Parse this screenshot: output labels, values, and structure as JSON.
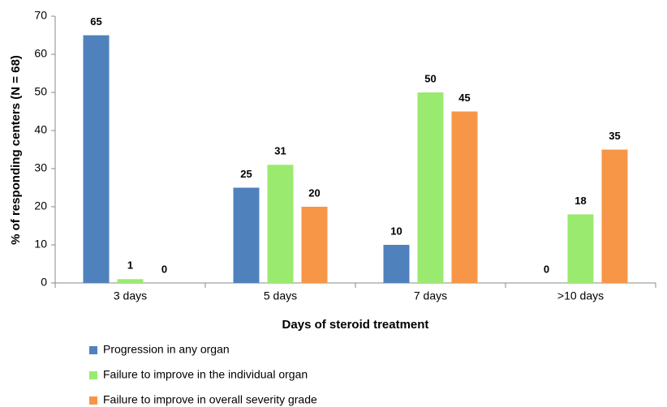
{
  "chart_data": {
    "type": "bar",
    "ylabel": "% of responding centers (N = 68)",
    "xlabel": "Days of steroid treatment",
    "categories": [
      "3 days",
      "5 days",
      "7 days",
      ">10 days"
    ],
    "series": [
      {
        "name": "Progression in any organ",
        "color": "#4f81bd",
        "values": [
          65,
          25,
          10,
          0
        ]
      },
      {
        "name": "Failure to improve in the individual organ",
        "color": "#9bea70",
        "values": [
          1,
          31,
          50,
          18
        ]
      },
      {
        "name": "Failure to improve in overall severity grade",
        "color": "#f79646",
        "values": [
          0,
          20,
          45,
          35
        ]
      }
    ],
    "ylim": [
      0,
      70
    ],
    "yticks": [
      0,
      10,
      20,
      30,
      40,
      50,
      60,
      70
    ],
    "grid": false,
    "legend": "bottom"
  }
}
